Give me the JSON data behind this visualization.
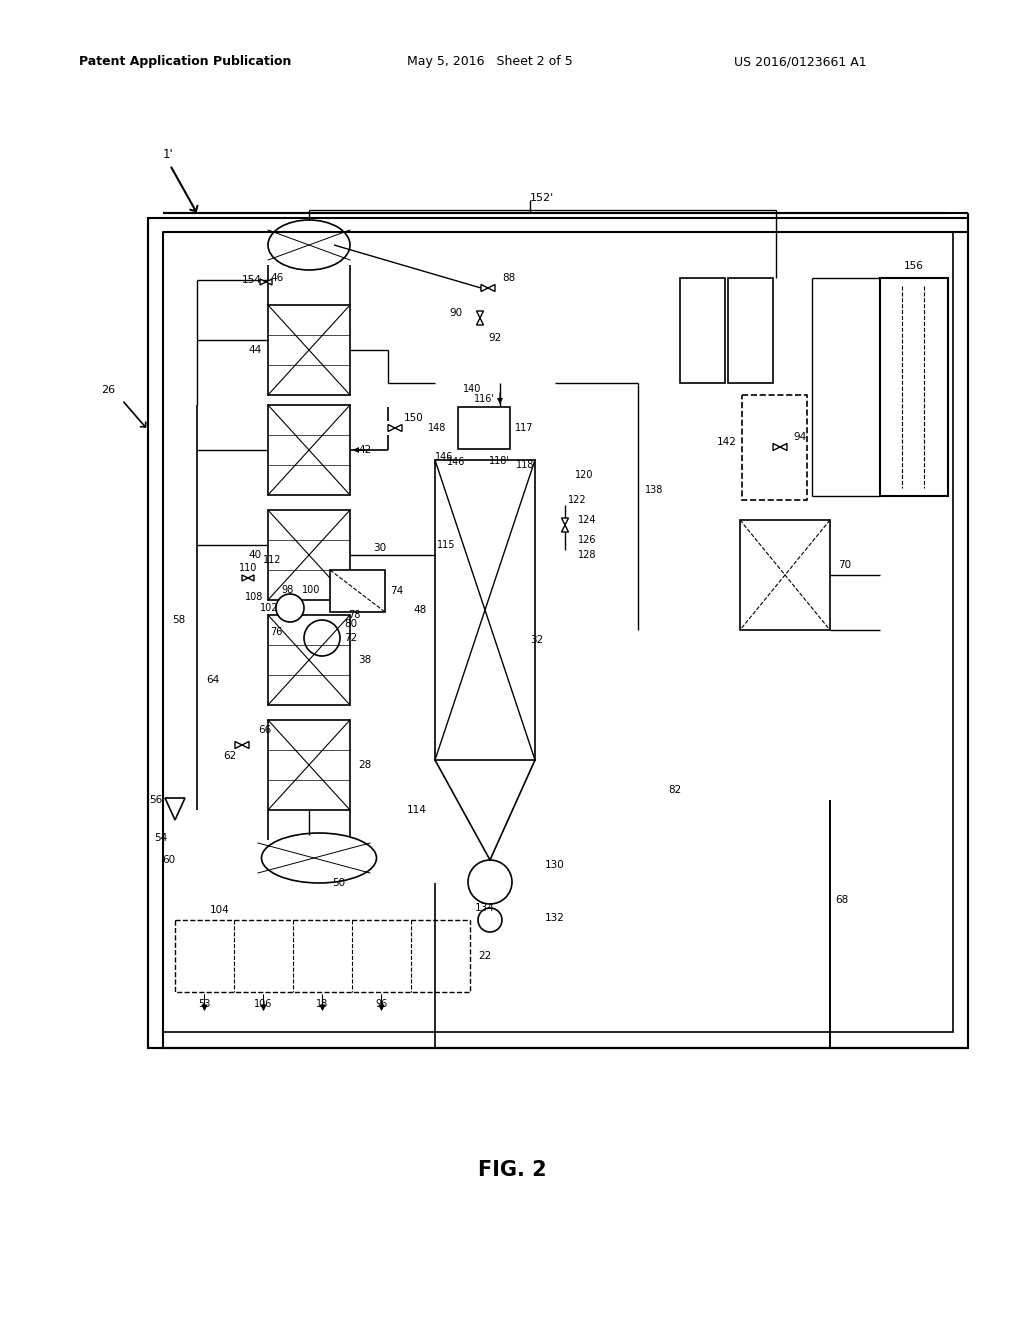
{
  "bg_color": "#ffffff",
  "header_left": "Patent Application Publication",
  "header_mid": "May 5, 2016   Sheet 2 of 5",
  "header_right": "US 2016/0123661 A1",
  "title": "FIG. 2"
}
